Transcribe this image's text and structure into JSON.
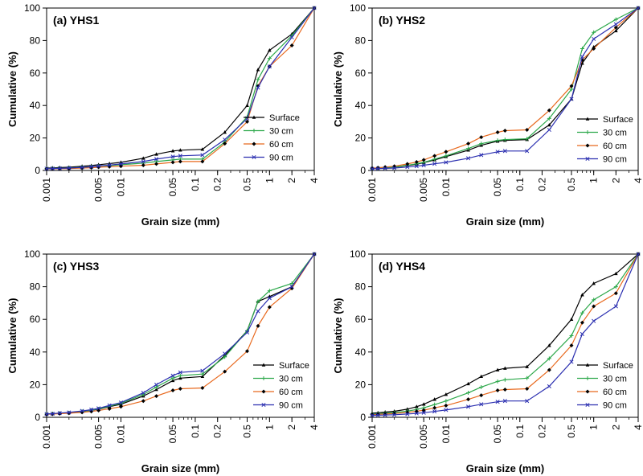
{
  "chart_data": [
    {
      "type": "line",
      "title": "(a) YHS1",
      "xlabel": "Grain size (mm)",
      "ylabel": "Cumulative (%)",
      "xscale": "log",
      "xlim": [
        0.001,
        4
      ],
      "ylim": [
        0,
        100
      ],
      "xticks": [
        "0.001",
        "0.005",
        "0.01",
        "0.05",
        "0.1",
        "0.2",
        "0.5",
        "1",
        "2",
        "4"
      ],
      "yticks": [
        "0",
        "20",
        "40",
        "60",
        "80",
        "100"
      ],
      "legend_position": "right",
      "x": [
        0.001,
        0.0012,
        0.0015,
        0.002,
        0.003,
        0.004,
        0.005,
        0.007,
        0.01,
        0.02,
        0.03,
        0.05,
        0.063,
        0.125,
        0.25,
        0.5,
        0.7,
        1,
        2,
        4
      ],
      "series": [
        {
          "name": "Surface",
          "values": [
            1.5,
            1.6,
            1.8,
            2,
            2.6,
            3,
            3.5,
            4.2,
            5,
            7.5,
            10,
            12,
            12.5,
            13,
            23.5,
            40,
            62,
            74,
            84,
            100
          ]
        },
        {
          "name": "30 cm",
          "values": [
            1.2,
            1.3,
            1.4,
            1.6,
            2,
            2.3,
            2.6,
            3,
            3.5,
            4.5,
            5.5,
            6.5,
            7,
            7,
            17.5,
            33,
            56,
            69,
            83,
            100
          ]
        },
        {
          "name": "60 cm",
          "values": [
            1,
            1.05,
            1.1,
            1.2,
            1.5,
            1.7,
            2,
            2.3,
            2.6,
            3.2,
            4,
            5,
            5.5,
            5.5,
            16.5,
            30,
            52,
            64,
            77,
            100
          ]
        },
        {
          "name": "90 cm",
          "values": [
            1.1,
            1.2,
            1.3,
            1.5,
            1.9,
            2.3,
            2.7,
            3.3,
            4,
            5.5,
            7,
            8.5,
            9,
            9.5,
            19,
            32,
            51,
            64,
            82,
            100
          ]
        }
      ]
    },
    {
      "type": "line",
      "title": "(b) YHS2",
      "xlabel": "Grain size (mm)",
      "ylabel": "Cumulative (%)",
      "xscale": "log",
      "xlim": [
        0.001,
        4
      ],
      "ylim": [
        0,
        100
      ],
      "xticks": [
        "0.001",
        "0.005",
        "0.01",
        "0.05",
        "0.1",
        "0.2",
        "0.5",
        "1",
        "2",
        "4"
      ],
      "yticks": [
        "0",
        "20",
        "40",
        "60",
        "80",
        "100"
      ],
      "legend_position": "bottom-right",
      "x": [
        0.001,
        0.0012,
        0.0015,
        0.002,
        0.003,
        0.004,
        0.005,
        0.007,
        0.01,
        0.02,
        0.03,
        0.05,
        0.063,
        0.125,
        0.25,
        0.5,
        0.7,
        1,
        2,
        4
      ],
      "series": [
        {
          "name": "Surface",
          "values": [
            1.2,
            1.4,
            1.7,
            2,
            3,
            3.8,
            4.8,
            6.5,
            8.5,
            12.5,
            15.5,
            18,
            18.5,
            19,
            28,
            44,
            66,
            76,
            86,
            100
          ]
        },
        {
          "name": "30 cm",
          "values": [
            1.3,
            1.5,
            1.8,
            2.1,
            3.2,
            4.1,
            5,
            7,
            9,
            13.5,
            16.5,
            18.5,
            19,
            19.5,
            32,
            50,
            75,
            85,
            93,
            100
          ]
        },
        {
          "name": "60 cm",
          "values": [
            1.4,
            1.7,
            2.1,
            2.6,
            4,
            5.2,
            6.5,
            9,
            11.5,
            16.5,
            20.5,
            23.5,
            24.5,
            25,
            37,
            52,
            68,
            75,
            88,
            100
          ]
        },
        {
          "name": "90 cm",
          "values": [
            1,
            1.15,
            1.3,
            1.5,
            2.1,
            2.6,
            3.2,
            4.1,
            5,
            7.5,
            9.5,
            11.5,
            12,
            12,
            25,
            44,
            70,
            81,
            90,
            100
          ]
        }
      ]
    },
    {
      "type": "line",
      "title": "(c) YHS3",
      "xlabel": "Grain size (mm)",
      "ylabel": "Cumulative (%)",
      "xscale": "log",
      "xlim": [
        0.001,
        4
      ],
      "ylim": [
        0,
        100
      ],
      "xticks": [
        "0.001",
        "0.005",
        "0.01",
        "0.05",
        "0.1",
        "0.2",
        "0.5",
        "1",
        "2",
        "4"
      ],
      "yticks": [
        "0",
        "20",
        "40",
        "60",
        "80",
        "100"
      ],
      "legend_position": "bottom-right",
      "x": [
        0.001,
        0.0012,
        0.0015,
        0.002,
        0.003,
        0.004,
        0.005,
        0.007,
        0.01,
        0.02,
        0.03,
        0.05,
        0.063,
        0.125,
        0.25,
        0.5,
        0.7,
        1,
        2,
        4
      ],
      "series": [
        {
          "name": "Surface",
          "values": [
            2,
            2.2,
            2.5,
            2.8,
            3.5,
            4.3,
            5,
            6.5,
            8,
            13,
            17,
            22.5,
            24,
            25,
            38,
            53,
            71,
            74,
            80,
            100
          ]
        },
        {
          "name": "30 cm",
          "values": [
            2,
            2.2,
            2.5,
            2.8,
            3.6,
            4.4,
            5.2,
            6.8,
            8.5,
            14,
            18.5,
            24,
            25.5,
            26.5,
            37,
            53,
            71,
            77.5,
            82,
            100
          ]
        },
        {
          "name": "60 cm",
          "values": [
            1.8,
            2,
            2.2,
            2.5,
            3,
            3.6,
            4.2,
            5.2,
            6.5,
            10,
            13,
            16.5,
            17.5,
            18,
            28,
            40.5,
            56,
            67.5,
            79,
            100
          ]
        },
        {
          "name": "90 cm",
          "values": [
            2,
            2.2,
            2.6,
            3,
            3.9,
            4.7,
            5.5,
            7.3,
            9,
            15,
            20,
            25.5,
            27.5,
            28.5,
            39,
            52,
            65,
            73,
            80,
            100
          ]
        }
      ]
    },
    {
      "type": "line",
      "title": "(d) YHS4",
      "xlabel": "Grain size (mm)",
      "ylabel": "Cumulative (%)",
      "xscale": "log",
      "xlim": [
        0.001,
        4
      ],
      "ylim": [
        0,
        100
      ],
      "xticks": [
        "0.001",
        "0.005",
        "0.01",
        "0.05",
        "0.1",
        "0.2",
        "0.5",
        "1",
        "2",
        "4"
      ],
      "yticks": [
        "0",
        "20",
        "40",
        "60",
        "80",
        "100"
      ],
      "legend_position": "bottom-right",
      "x": [
        0.001,
        0.0012,
        0.0015,
        0.002,
        0.003,
        0.004,
        0.005,
        0.007,
        0.01,
        0.02,
        0.03,
        0.05,
        0.063,
        0.125,
        0.25,
        0.5,
        0.7,
        1,
        2,
        4
      ],
      "series": [
        {
          "name": "Surface",
          "values": [
            2.5,
            2.8,
            3.2,
            3.7,
            5,
            6.5,
            8,
            11,
            14,
            20.5,
            25,
            29,
            30,
            31,
            44,
            60,
            75,
            82,
            88,
            100
          ]
        },
        {
          "name": "30 cm",
          "values": [
            2,
            2.2,
            2.5,
            2.9,
            3.8,
            4.8,
            5.8,
            7.8,
            10,
            15,
            18.5,
            22,
            23,
            24,
            36,
            50,
            64,
            72,
            80,
            100
          ]
        },
        {
          "name": "60 cm",
          "values": [
            1.6,
            1.8,
            2,
            2.3,
            3,
            3.7,
            4.4,
            5.8,
            7.2,
            11,
            13.5,
            16.5,
            17,
            17.5,
            29,
            44,
            58,
            68,
            76,
            100
          ]
        },
        {
          "name": "90 cm",
          "values": [
            1.2,
            1.3,
            1.4,
            1.6,
            2,
            2.4,
            2.8,
            3.6,
            4.5,
            6.5,
            8,
            9.5,
            10,
            10,
            19,
            34,
            51,
            59,
            68,
            100
          ]
        }
      ]
    }
  ],
  "series_style": [
    {
      "color": "#000000",
      "marker": "triangle"
    },
    {
      "color": "#2ca84a",
      "marker": "plus"
    },
    {
      "color": "#e8691e",
      "marker": "diamond"
    },
    {
      "color": "#2b2fb0",
      "marker": "cross"
    }
  ]
}
